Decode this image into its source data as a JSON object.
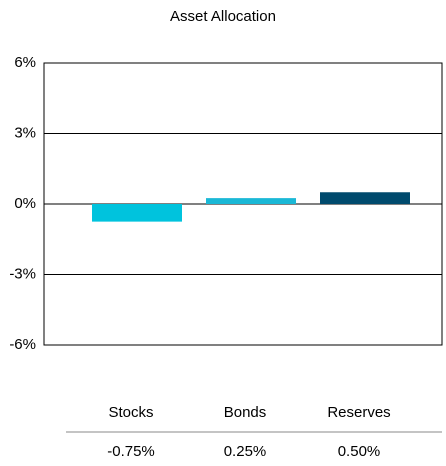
{
  "chart_data": {
    "type": "bar",
    "title": "Asset Allocation",
    "categories": [
      "Stocks",
      "Bonds",
      "Reserves"
    ],
    "values": [
      -0.75,
      0.25,
      0.5
    ],
    "value_labels": [
      "-0.75%",
      "0.25%",
      "0.50%"
    ],
    "colors": [
      "#00c3dd",
      "#1ab8d6",
      "#004a6d"
    ],
    "ylim": [
      -6,
      6
    ],
    "yticks": [
      {
        "value": -6,
        "label": "-6%"
      },
      {
        "value": -3,
        "label": "-3%"
      },
      {
        "value": 0,
        "label": "0%"
      },
      {
        "value": 3,
        "label": "3%"
      },
      {
        "value": 6,
        "label": "6%"
      }
    ],
    "grid": true
  }
}
